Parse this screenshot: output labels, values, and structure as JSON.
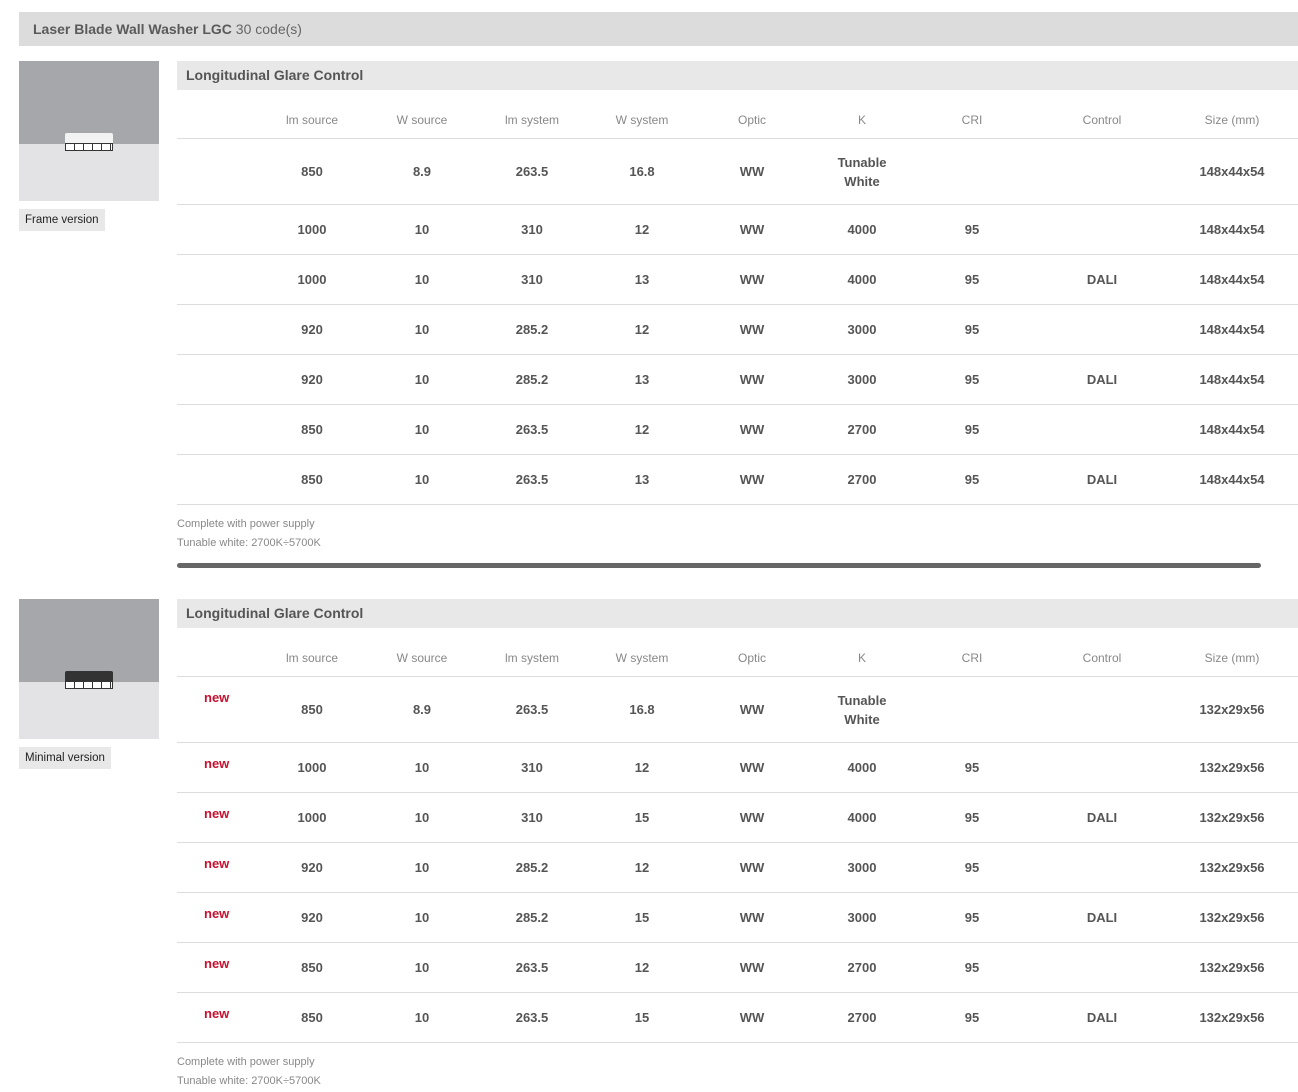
{
  "header": {
    "title": "Laser Blade Wall Washer LGC",
    "count": "30 code(s)"
  },
  "columns": [
    "lm source",
    "W source",
    "lm system",
    "W system",
    "Optic",
    "K",
    "CRI",
    "Control",
    "Size (mm)"
  ],
  "sections": [
    {
      "variant": "Frame version",
      "title": "Longitudinal Glare Control",
      "fixture_color": "#f2f2f2",
      "rows": [
        {
          "badge": "",
          "cells": [
            "850",
            "8.9",
            "263.5",
            "16.8",
            "WW",
            "Tunable White",
            "",
            "",
            "148x44x54"
          ]
        },
        {
          "badge": "",
          "cells": [
            "1000",
            "10",
            "310",
            "12",
            "WW",
            "4000",
            "95",
            "",
            "148x44x54"
          ]
        },
        {
          "badge": "",
          "cells": [
            "1000",
            "10",
            "310",
            "13",
            "WW",
            "4000",
            "95",
            "DALI",
            "148x44x54"
          ]
        },
        {
          "badge": "",
          "cells": [
            "920",
            "10",
            "285.2",
            "12",
            "WW",
            "3000",
            "95",
            "",
            "148x44x54"
          ]
        },
        {
          "badge": "",
          "cells": [
            "920",
            "10",
            "285.2",
            "13",
            "WW",
            "3000",
            "95",
            "DALI",
            "148x44x54"
          ]
        },
        {
          "badge": "",
          "cells": [
            "850",
            "10",
            "263.5",
            "12",
            "WW",
            "2700",
            "95",
            "",
            "148x44x54"
          ]
        },
        {
          "badge": "",
          "cells": [
            "850",
            "10",
            "263.5",
            "13",
            "WW",
            "2700",
            "95",
            "DALI",
            "148x44x54"
          ]
        }
      ],
      "notes": [
        "Complete with power supply",
        "Tunable white: 2700K÷5700K"
      ]
    },
    {
      "variant": "Minimal version",
      "title": "Longitudinal Glare Control",
      "fixture_color": "#333333",
      "rows": [
        {
          "badge": "new",
          "cells": [
            "850",
            "8.9",
            "263.5",
            "16.8",
            "WW",
            "Tunable White",
            "",
            "",
            "132x29x56"
          ]
        },
        {
          "badge": "new",
          "cells": [
            "1000",
            "10",
            "310",
            "12",
            "WW",
            "4000",
            "95",
            "",
            "132x29x56"
          ]
        },
        {
          "badge": "new",
          "cells": [
            "1000",
            "10",
            "310",
            "15",
            "WW",
            "4000",
            "95",
            "DALI",
            "132x29x56"
          ]
        },
        {
          "badge": "new",
          "cells": [
            "920",
            "10",
            "285.2",
            "12",
            "WW",
            "3000",
            "95",
            "",
            "132x29x56"
          ]
        },
        {
          "badge": "new",
          "cells": [
            "920",
            "10",
            "285.2",
            "15",
            "WW",
            "3000",
            "95",
            "DALI",
            "132x29x56"
          ]
        },
        {
          "badge": "new",
          "cells": [
            "850",
            "10",
            "263.5",
            "12",
            "WW",
            "2700",
            "95",
            "",
            "132x29x56"
          ]
        },
        {
          "badge": "new",
          "cells": [
            "850",
            "10",
            "263.5",
            "15",
            "WW",
            "2700",
            "95",
            "DALI",
            "132x29x56"
          ]
        }
      ],
      "notes": [
        "Complete with power supply",
        "Tunable white: 2700K÷5700K"
      ]
    }
  ],
  "colors": {
    "new_badge": "#c8102e",
    "header_bg": "#dcdcdc"
  }
}
